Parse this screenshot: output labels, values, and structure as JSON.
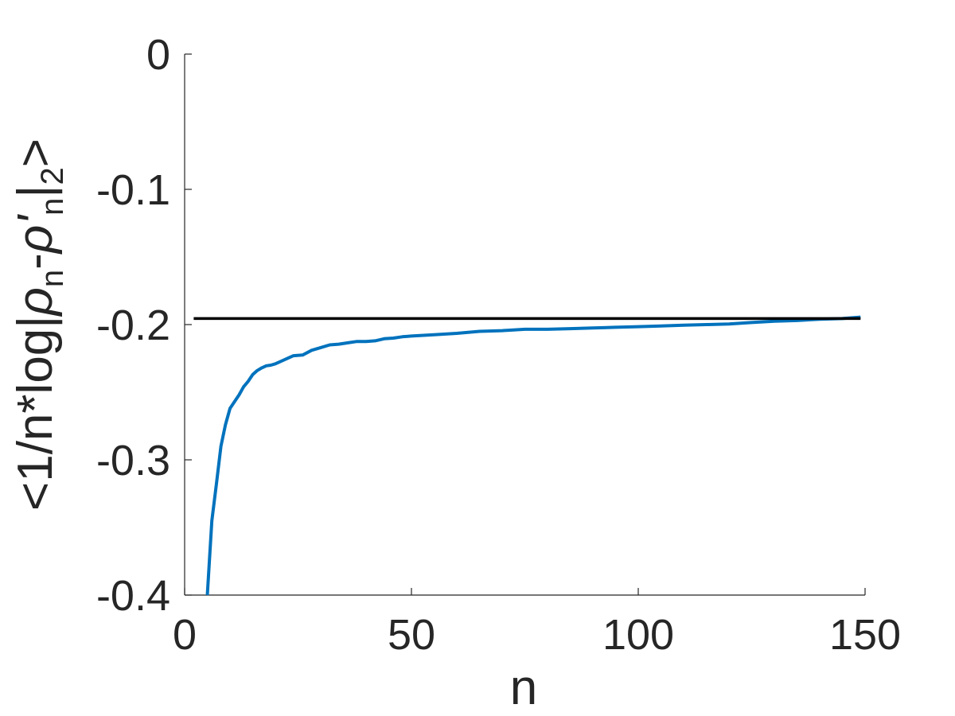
{
  "chart_data": {
    "type": "line",
    "xlabel": "n",
    "ylabel_parts": {
      "prefix": "<1/n*log|",
      "rho": "ρ",
      "sub_n": "n",
      "minus": "-",
      "rho_prime": "ρ'",
      "sub_n2": "n",
      "bar": "|",
      "sub_2": "2",
      "suffix": ">"
    },
    "xlim": [
      0,
      150
    ],
    "ylim": [
      -0.4,
      0
    ],
    "xticks": [
      0,
      50,
      100,
      150
    ],
    "xtick_labels": [
      "0",
      "50",
      "100",
      "150"
    ],
    "yticks": [
      0,
      -0.1,
      -0.2,
      -0.3,
      -0.4
    ],
    "ytick_labels": [
      "0",
      "-0.1",
      "-0.2",
      "-0.3",
      "-0.4"
    ],
    "grid": false,
    "series": [
      {
        "color": "#0072BD",
        "x": [
          5,
          6,
          7,
          8,
          9,
          10,
          11,
          12,
          13,
          14,
          15,
          16,
          17,
          18,
          19,
          20,
          22,
          24,
          26,
          28,
          30,
          32,
          34,
          36,
          38,
          40,
          42,
          44,
          46,
          48,
          50,
          55,
          60,
          65,
          70,
          75,
          80,
          85,
          90,
          95,
          100,
          105,
          110,
          115,
          120,
          125,
          130,
          135,
          140,
          145,
          149
        ],
        "y": [
          -0.4,
          -0.345,
          -0.318,
          -0.29,
          -0.274,
          -0.262,
          -0.257,
          -0.252,
          -0.246,
          -0.242,
          -0.237,
          -0.234,
          -0.232,
          -0.2305,
          -0.23,
          -0.229,
          -0.226,
          -0.223,
          -0.2225,
          -0.219,
          -0.217,
          -0.215,
          -0.2145,
          -0.2135,
          -0.2125,
          -0.2125,
          -0.212,
          -0.2105,
          -0.21,
          -0.209,
          -0.2085,
          -0.2075,
          -0.2065,
          -0.205,
          -0.2045,
          -0.2035,
          -0.2035,
          -0.203,
          -0.2025,
          -0.202,
          -0.2015,
          -0.201,
          -0.2005,
          -0.2,
          -0.1995,
          -0.1985,
          -0.1975,
          -0.197,
          -0.196,
          -0.1955,
          -0.1945
        ]
      },
      {
        "color": "#000000",
        "x": [
          2,
          149
        ],
        "y": [
          -0.1955,
          -0.1955
        ]
      }
    ]
  }
}
